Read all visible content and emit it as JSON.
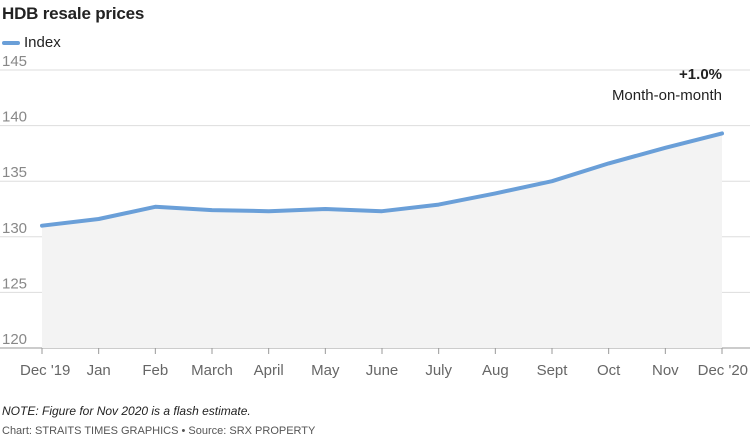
{
  "colors": {
    "line": "#6a9fd8",
    "area": "#f3f3f3",
    "grid": "#dddddd",
    "axis_text": "#888888"
  },
  "chart_data": {
    "type": "area",
    "title": "HDB resale prices",
    "legend": [
      "Index"
    ],
    "categories": [
      "Dec '19",
      "Jan",
      "Feb",
      "March",
      "April",
      "May",
      "June",
      "July",
      "Aug",
      "Sept",
      "Oct",
      "Nov",
      "Dec '20"
    ],
    "series": [
      {
        "name": "Index",
        "values": [
          131.0,
          131.6,
          132.7,
          132.4,
          132.3,
          132.5,
          132.3,
          132.9,
          133.9,
          135.0,
          136.6,
          138.0,
          139.3
        ]
      }
    ],
    "ylim": [
      120,
      145
    ],
    "yticks": [
      120,
      125,
      130,
      135,
      140,
      145
    ],
    "grid": true,
    "annotation": {
      "value": "+1.0%",
      "label": "Month-on-month"
    }
  },
  "note": "NOTE: Figure for Nov 2020 is a flash estimate.",
  "credit": "Chart: STRAITS TIMES GRAPHICS • Source: SRX PROPERTY"
}
